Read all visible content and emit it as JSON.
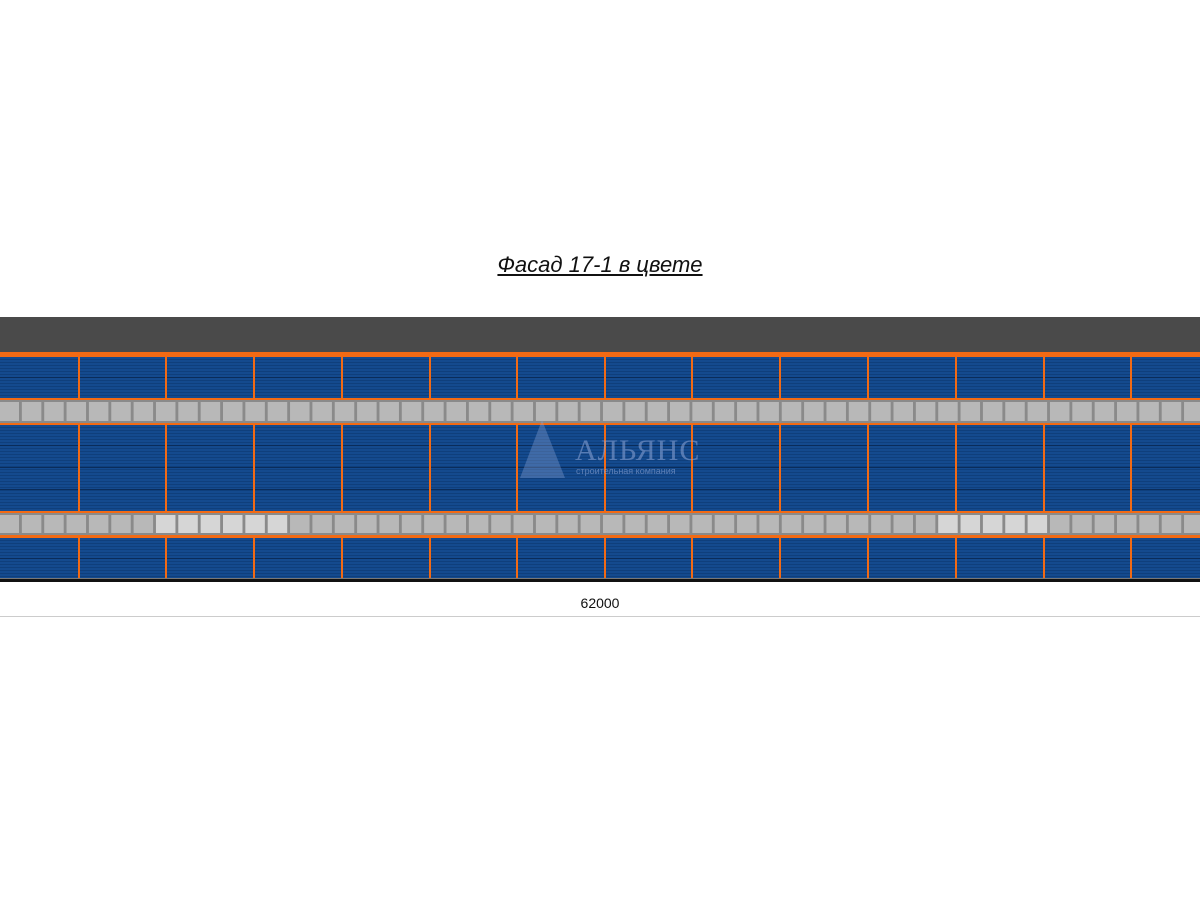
{
  "drawing": {
    "title": "Фасад 17-1 в цвете",
    "dimension_label": "62000",
    "watermark": {
      "name": "АЛЬЯНС",
      "subtitle": "строительная компания"
    },
    "colors": {
      "roof": "#4a4a4a",
      "cladding": "#144a8e",
      "trim": "#f26a14",
      "window": "#b8b8b8",
      "window_light": "#d6d6d6"
    }
  }
}
